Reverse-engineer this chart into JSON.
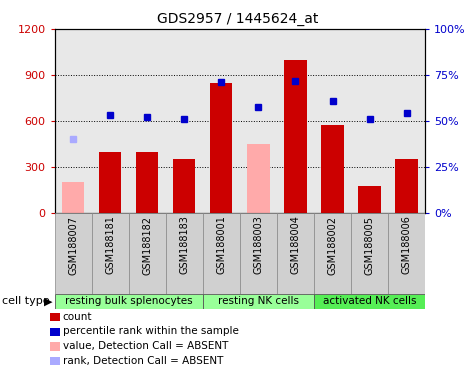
{
  "title": "GDS2957 / 1445624_at",
  "samples": [
    "GSM188007",
    "GSM188181",
    "GSM188182",
    "GSM188183",
    "GSM188001",
    "GSM188003",
    "GSM188004",
    "GSM188002",
    "GSM188005",
    "GSM188006"
  ],
  "counts": [
    null,
    400,
    400,
    350,
    850,
    null,
    1000,
    575,
    175,
    350
  ],
  "counts_absent": [
    200,
    null,
    null,
    null,
    null,
    450,
    null,
    null,
    null,
    null
  ],
  "percentile_ranks_pct": [
    null,
    53.5,
    52.0,
    51.2,
    71.2,
    57.5,
    71.7,
    60.8,
    50.8,
    54.5
  ],
  "percentile_ranks_absent_pct": [
    40.0,
    null,
    null,
    null,
    null,
    null,
    null,
    null,
    null,
    null
  ],
  "cell_groups": [
    {
      "label": "resting bulk splenocytes",
      "start": 0,
      "end": 3,
      "color": "#99ff99"
    },
    {
      "label": "resting NK cells",
      "start": 4,
      "end": 6,
      "color": "#99ff99"
    },
    {
      "label": "activated NK cells",
      "start": 7,
      "end": 9,
      "color": "#55ee55"
    }
  ],
  "bar_color_present": "#cc0000",
  "bar_color_absent": "#ffaaaa",
  "dot_color_present": "#0000cc",
  "dot_color_absent": "#aaaaff",
  "ylim_left": [
    0,
    1200
  ],
  "ylim_right": [
    0,
    100
  ],
  "yticks_left": [
    0,
    300,
    600,
    900,
    1200
  ],
  "yticks_right": [
    0,
    25,
    50,
    75,
    100
  ],
  "ytick_labels_right": [
    "0%",
    "25%",
    "50%",
    "75%",
    "100%"
  ],
  "plot_bg_color": "#e8e8e8",
  "sample_bg_color": "#d0d0d0",
  "legend_items": [
    {
      "color": "#cc0000",
      "label": "count"
    },
    {
      "color": "#0000cc",
      "label": "percentile rank within the sample"
    },
    {
      "color": "#ffaaaa",
      "label": "value, Detection Call = ABSENT"
    },
    {
      "color": "#aaaaff",
      "label": "rank, Detection Call = ABSENT"
    }
  ]
}
